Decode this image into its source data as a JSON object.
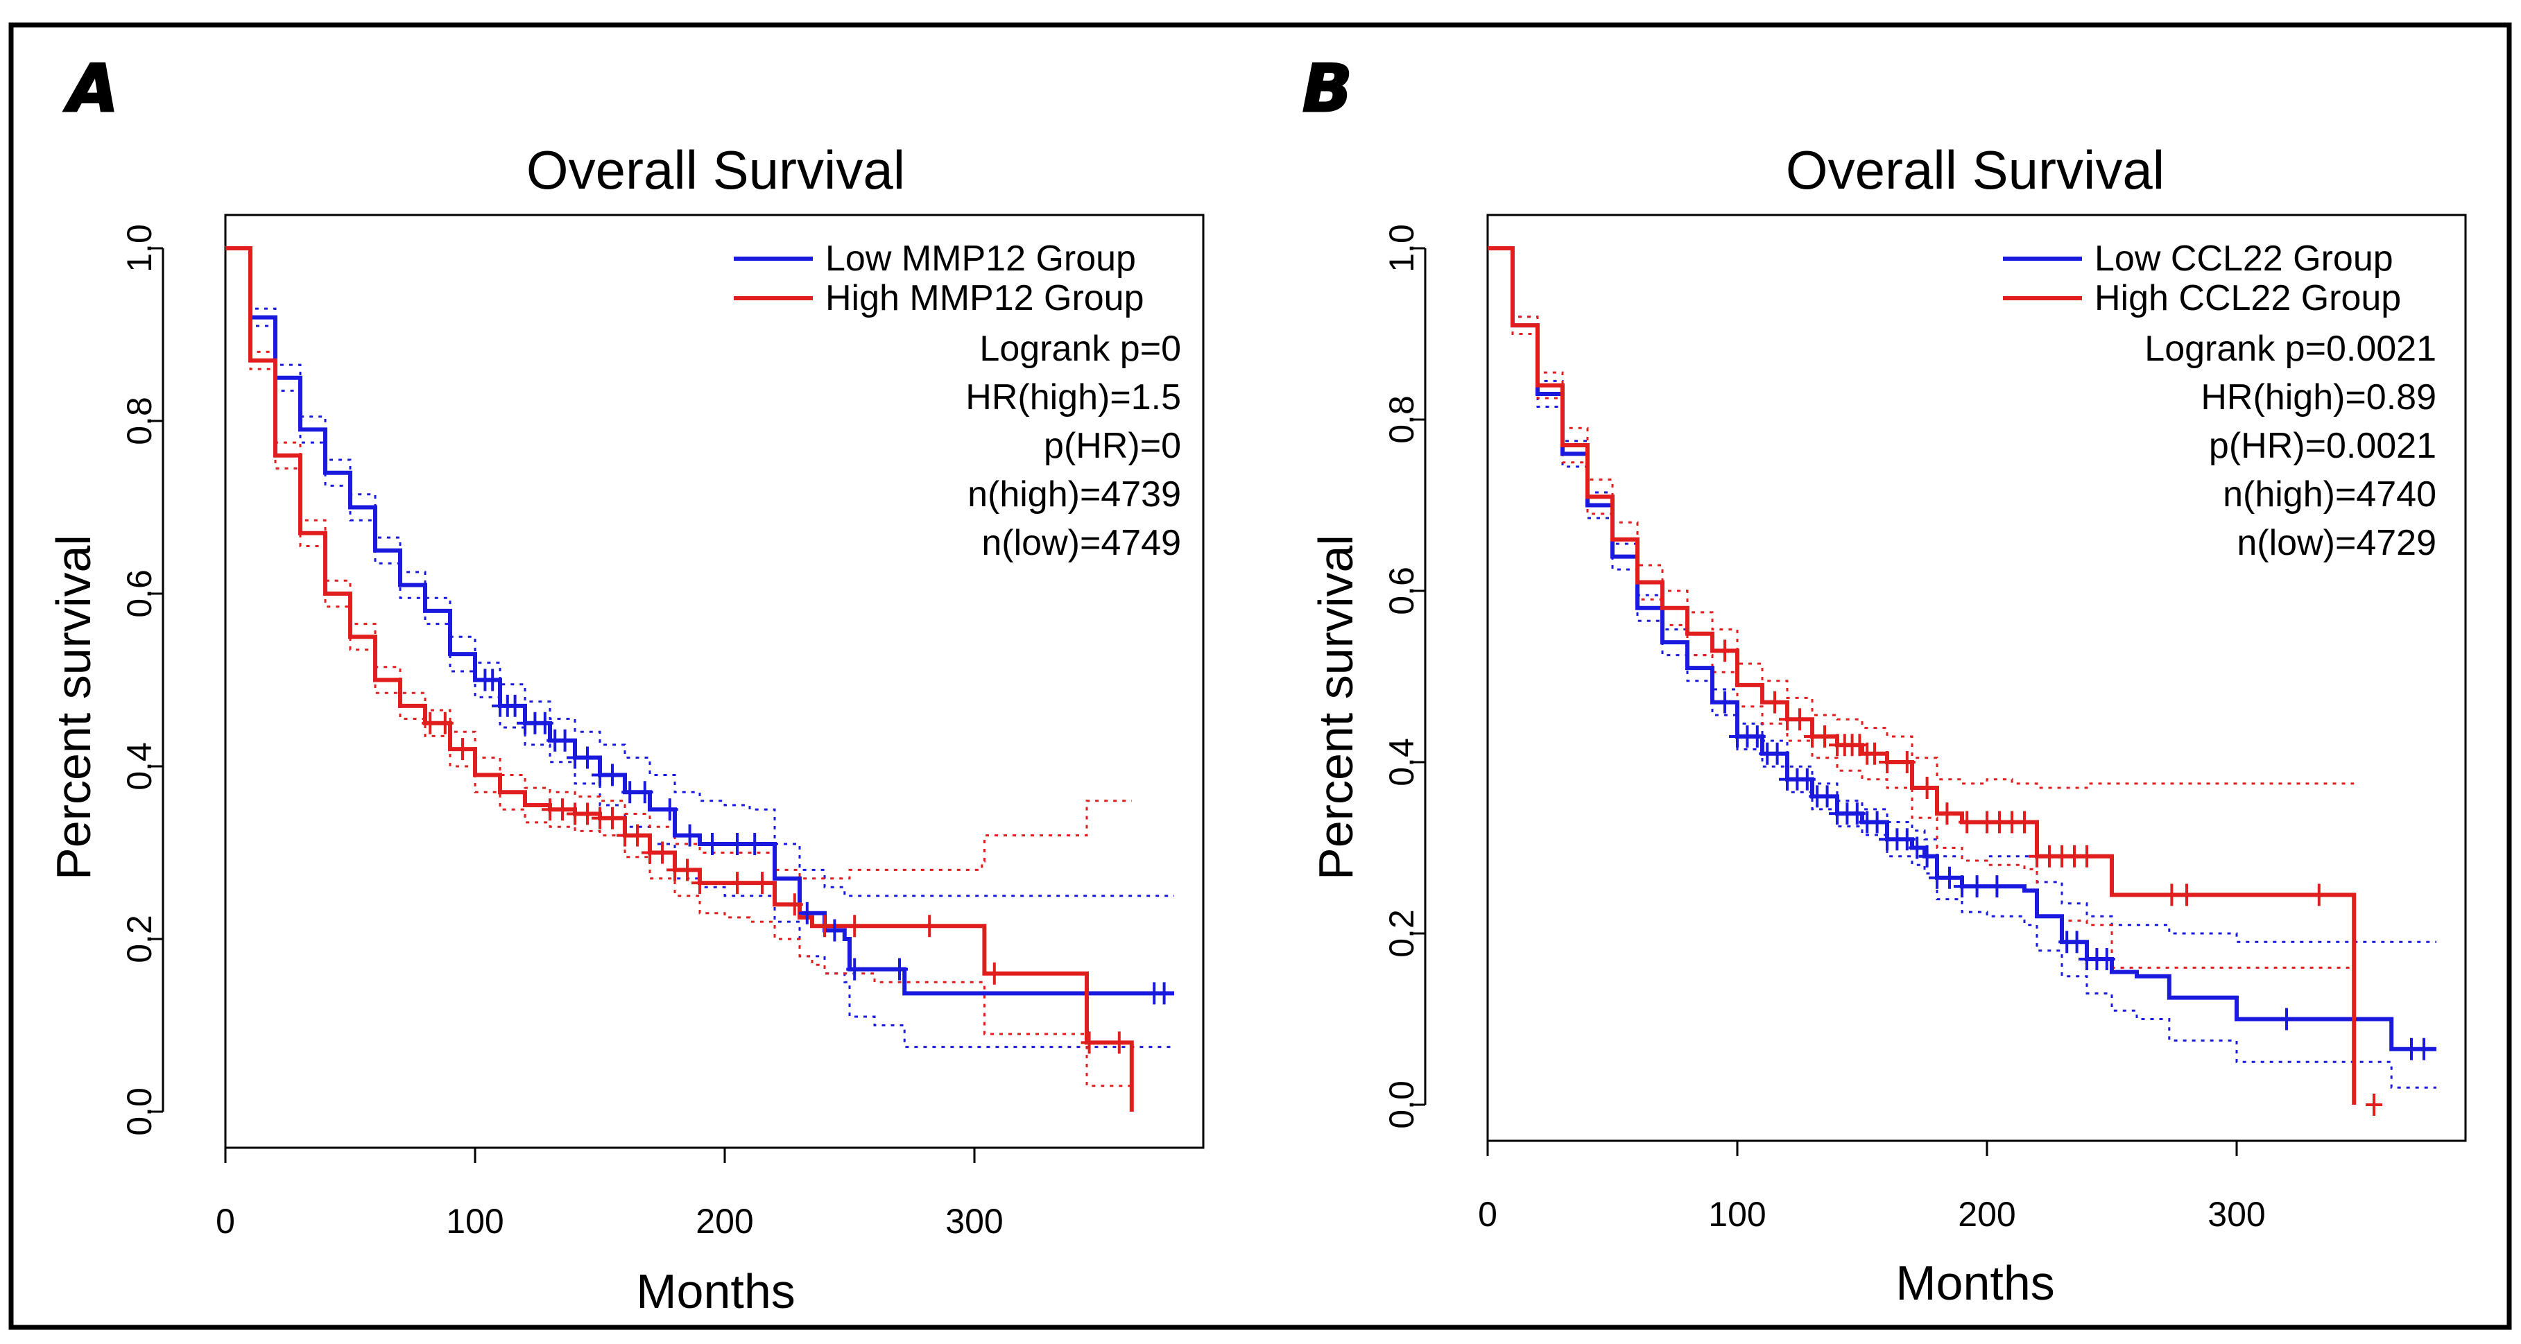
{
  "chart_data": [
    {
      "type": "line",
      "panel_label": "A",
      "title": "Overall Survival",
      "xlabel": "Months",
      "ylabel": "Percent survival",
      "xlim": [
        0,
        380
      ],
      "ylim": [
        0,
        1.0
      ],
      "x_ticks": [
        0,
        100,
        200,
        300
      ],
      "x_tick_labels": [
        "0",
        "100",
        "200",
        "300"
      ],
      "y_ticks": [
        0,
        0.2,
        0.4,
        0.6,
        0.8,
        1.0
      ],
      "y_tick_labels": [
        "0.0",
        "0.2",
        "0.4",
        "0.6",
        "0.8",
        "1.0"
      ],
      "legend_position": "top-right",
      "legend_entries": [
        "Low MMP12 Group",
        "High MMP12 Group"
      ],
      "stats": [
        "Logrank p=0",
        "HR(high)=1.5",
        "p(HR)=0",
        "n(high)=4739",
        "n(low)=4749"
      ],
      "series": [
        {
          "name": "Low MMP12 Group",
          "color": "#1a1adf",
          "x": [
            0,
            10,
            20,
            30,
            40,
            50,
            60,
            70,
            80,
            90,
            100,
            110,
            120,
            130,
            140,
            150,
            160,
            170,
            180,
            190,
            200,
            210,
            219,
            220,
            230,
            240,
            248,
            250,
            260,
            272,
            300,
            340,
            380
          ],
          "y": [
            1.0,
            0.92,
            0.85,
            0.79,
            0.74,
            0.7,
            0.65,
            0.61,
            0.58,
            0.53,
            0.5,
            0.47,
            0.45,
            0.43,
            0.41,
            0.39,
            0.37,
            0.35,
            0.32,
            0.31,
            0.31,
            0.31,
            0.31,
            0.27,
            0.23,
            0.21,
            0.2,
            0.165,
            0.165,
            0.137,
            0.137,
            0.137,
            0.137
          ],
          "ci_upper": [
            1.0,
            0.93,
            0.865,
            0.805,
            0.755,
            0.715,
            0.665,
            0.625,
            0.595,
            0.55,
            0.52,
            0.495,
            0.475,
            0.455,
            0.44,
            0.425,
            0.41,
            0.39,
            0.37,
            0.36,
            0.355,
            0.35,
            0.35,
            0.31,
            0.28,
            0.26,
            0.25,
            0.25,
            0.25,
            0.25,
            0.25,
            0.25,
            0.25
          ],
          "ci_lower": [
            1.0,
            0.91,
            0.835,
            0.775,
            0.725,
            0.685,
            0.635,
            0.595,
            0.565,
            0.51,
            0.48,
            0.445,
            0.425,
            0.405,
            0.38,
            0.355,
            0.33,
            0.31,
            0.27,
            0.26,
            0.25,
            0.25,
            0.25,
            0.22,
            0.18,
            0.16,
            0.15,
            0.11,
            0.1,
            0.075,
            0.075,
            0.075,
            0.075
          ],
          "censor_x": [
            104,
            107,
            110,
            113,
            116,
            120,
            124,
            128,
            132,
            136,
            140,
            145,
            150,
            155,
            162,
            168,
            178,
            186,
            195,
            205,
            212,
            233,
            244,
            252,
            270,
            372,
            376
          ]
        },
        {
          "name": "High MMP12 Group",
          "color": "#e01e1e",
          "x": [
            0,
            10,
            20,
            30,
            40,
            50,
            60,
            70,
            80,
            90,
            100,
            110,
            120,
            130,
            140,
            150,
            160,
            170,
            180,
            190,
            200,
            210,
            220,
            230,
            235,
            240,
            250,
            260,
            280,
            303,
            304,
            330,
            344,
            345,
            362,
            363
          ],
          "y": [
            1.0,
            0.87,
            0.76,
            0.67,
            0.6,
            0.55,
            0.5,
            0.47,
            0.45,
            0.42,
            0.39,
            0.37,
            0.355,
            0.35,
            0.345,
            0.34,
            0.32,
            0.3,
            0.28,
            0.265,
            0.265,
            0.265,
            0.24,
            0.225,
            0.215,
            0.215,
            0.215,
            0.215,
            0.215,
            0.215,
            0.16,
            0.16,
            0.16,
            0.08,
            0.08,
            0.0
          ],
          "ci_upper": [
            1.0,
            0.88,
            0.775,
            0.685,
            0.615,
            0.565,
            0.515,
            0.485,
            0.465,
            0.44,
            0.41,
            0.39,
            0.375,
            0.37,
            0.365,
            0.36,
            0.345,
            0.33,
            0.31,
            0.3,
            0.3,
            0.3,
            0.28,
            0.27,
            0.27,
            0.27,
            0.28,
            0.28,
            0.28,
            0.29,
            0.32,
            0.32,
            0.32,
            0.36,
            0.36,
            0.36
          ],
          "ci_lower": [
            1.0,
            0.86,
            0.745,
            0.655,
            0.585,
            0.535,
            0.485,
            0.455,
            0.435,
            0.4,
            0.37,
            0.35,
            0.335,
            0.33,
            0.325,
            0.32,
            0.295,
            0.27,
            0.25,
            0.23,
            0.225,
            0.22,
            0.2,
            0.18,
            0.17,
            0.16,
            0.16,
            0.15,
            0.15,
            0.15,
            0.09,
            0.09,
            0.09,
            0.03,
            0.03,
            0.03
          ],
          "censor_x": [
            82,
            88,
            95,
            130,
            135,
            140,
            145,
            150,
            155,
            160,
            165,
            170,
            175,
            180,
            185,
            190,
            205,
            215,
            228,
            240,
            252,
            282,
            308,
            346,
            358
          ]
        }
      ]
    },
    {
      "type": "line",
      "panel_label": "B",
      "title": "Overall Survival",
      "xlabel": "Months",
      "ylabel": "Percent survival",
      "xlim": [
        0,
        380
      ],
      "ylim": [
        0,
        1.0
      ],
      "x_ticks": [
        0,
        100,
        200,
        300
      ],
      "x_tick_labels": [
        "0",
        "100",
        "200",
        "300"
      ],
      "y_ticks": [
        0,
        0.2,
        0.4,
        0.6,
        0.8,
        1.0
      ],
      "y_tick_labels": [
        "0.0",
        "0.2",
        "0.4",
        "0.6",
        "0.8",
        "1.0"
      ],
      "legend_position": "top-right",
      "legend_entries": [
        "Low CCL22 Group",
        "High CCL22 Group"
      ],
      "stats": [
        "Logrank p=0.0021",
        "HR(high)=0.89",
        "p(HR)=0.0021",
        "n(high)=4740",
        "n(low)=4729"
      ],
      "series": [
        {
          "name": "Low CCL22 Group",
          "color": "#1a1adf",
          "x": [
            0,
            10,
            20,
            30,
            40,
            50,
            60,
            70,
            80,
            90,
            100,
            110,
            120,
            130,
            140,
            150,
            160,
            170,
            175,
            180,
            190,
            200,
            210,
            215,
            220,
            230,
            240,
            250,
            260,
            273,
            300,
            320,
            345,
            360,
            362,
            380
          ],
          "y": [
            1.0,
            0.91,
            0.83,
            0.76,
            0.7,
            0.64,
            0.58,
            0.54,
            0.51,
            0.47,
            0.43,
            0.41,
            0.38,
            0.36,
            0.34,
            0.33,
            0.31,
            0.3,
            0.29,
            0.265,
            0.255,
            0.255,
            0.255,
            0.25,
            0.22,
            0.19,
            0.17,
            0.155,
            0.15,
            0.125,
            0.1,
            0.1,
            0.1,
            0.1,
            0.065,
            0.065
          ],
          "ci_upper": [
            1.0,
            0.92,
            0.845,
            0.775,
            0.715,
            0.655,
            0.595,
            0.555,
            0.525,
            0.485,
            0.445,
            0.425,
            0.395,
            0.375,
            0.355,
            0.345,
            0.33,
            0.32,
            0.31,
            0.29,
            0.285,
            0.29,
            0.29,
            0.29,
            0.26,
            0.235,
            0.22,
            0.21,
            0.21,
            0.2,
            0.19,
            0.19,
            0.19,
            0.19,
            0.19,
            0.19
          ],
          "ci_lower": [
            1.0,
            0.9,
            0.815,
            0.745,
            0.685,
            0.625,
            0.565,
            0.525,
            0.495,
            0.455,
            0.415,
            0.395,
            0.365,
            0.345,
            0.325,
            0.315,
            0.29,
            0.28,
            0.27,
            0.24,
            0.225,
            0.22,
            0.22,
            0.21,
            0.18,
            0.15,
            0.13,
            0.11,
            0.1,
            0.075,
            0.05,
            0.05,
            0.05,
            0.05,
            0.02,
            0.02
          ],
          "censor_x": [
            95,
            100,
            104,
            108,
            112,
            116,
            120,
            124,
            128,
            132,
            136,
            140,
            144,
            148,
            152,
            156,
            160,
            164,
            168,
            172,
            176,
            180,
            185,
            190,
            196,
            204,
            232,
            236,
            240,
            244,
            248,
            320,
            370,
            375
          ]
        },
        {
          "name": "High CCL22 Group",
          "color": "#e01e1e",
          "x": [
            0,
            10,
            20,
            30,
            40,
            50,
            60,
            70,
            80,
            90,
            100,
            110,
            120,
            130,
            140,
            150,
            160,
            170,
            180,
            190,
            200,
            210,
            215,
            220,
            230,
            240,
            249,
            250,
            260,
            300,
            320,
            345,
            346,
            347
          ],
          "y": [
            1.0,
            0.91,
            0.84,
            0.77,
            0.71,
            0.66,
            0.61,
            0.58,
            0.55,
            0.53,
            0.49,
            0.47,
            0.45,
            0.43,
            0.42,
            0.41,
            0.4,
            0.37,
            0.34,
            0.33,
            0.33,
            0.33,
            0.33,
            0.29,
            0.29,
            0.29,
            0.29,
            0.245,
            0.245,
            0.245,
            0.245,
            0.245,
            0.245,
            0.0
          ],
          "ci_upper": [
            1.0,
            0.92,
            0.855,
            0.79,
            0.73,
            0.68,
            0.63,
            0.6,
            0.575,
            0.555,
            0.515,
            0.495,
            0.475,
            0.455,
            0.45,
            0.44,
            0.43,
            0.405,
            0.38,
            0.375,
            0.38,
            0.375,
            0.375,
            0.37,
            0.37,
            0.375,
            0.375,
            0.375,
            0.375,
            0.375,
            0.375,
            0.375,
            0.375,
            0.375
          ],
          "ci_lower": [
            1.0,
            0.9,
            0.825,
            0.75,
            0.69,
            0.64,
            0.59,
            0.56,
            0.525,
            0.505,
            0.465,
            0.445,
            0.425,
            0.405,
            0.39,
            0.38,
            0.37,
            0.335,
            0.3,
            0.285,
            0.28,
            0.28,
            0.275,
            0.22,
            0.215,
            0.21,
            0.21,
            0.16,
            0.16,
            0.16,
            0.16,
            0.16,
            0.16,
            0.16
          ],
          "censor_x": [
            95,
            115,
            120,
            125,
            130,
            135,
            140,
            143,
            146,
            149,
            152,
            155,
            160,
            168,
            176,
            184,
            192,
            200,
            205,
            210,
            215,
            220,
            225,
            230,
            235,
            240,
            274,
            280,
            333,
            355
          ]
        }
      ]
    }
  ]
}
